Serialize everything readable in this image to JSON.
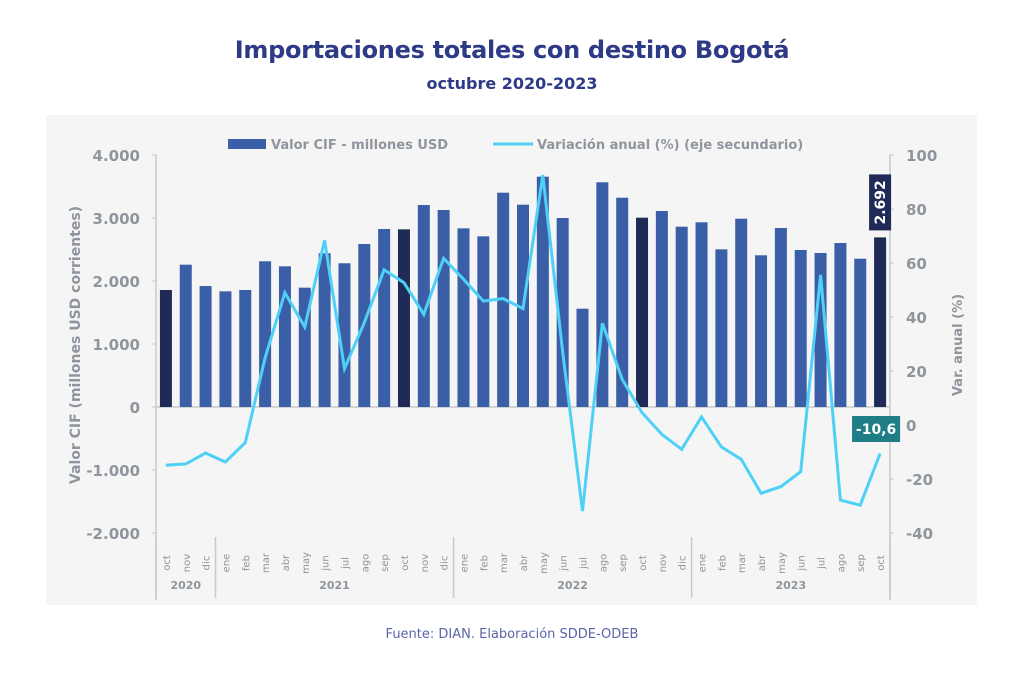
{
  "header": {
    "title": "Importaciones totales con destino Bogotá",
    "subtitle": "octubre 2020-2023"
  },
  "footer": {
    "source": "Fuente: DIAN. Elaboración SDDE-ODEB"
  },
  "colors": {
    "bar": "#3a5fa6",
    "bar_highlight": "#1f2a56",
    "line": "#4fd0f7",
    "axis_text": "#8e959c",
    "title": "#2e3a86",
    "label_bar_bg": "#1f2a56",
    "label_line_bg": "#1e7d85",
    "panel": "#f5f5f5"
  },
  "chart_data": {
    "type": "bar",
    "title": "Importaciones totales con destino Bogotá",
    "subtitle": "octubre 2020-2023",
    "ylabel": "Valor CIF (millones USD corrientes)",
    "y2label": "Var.  anual (%)",
    "ylim": [
      -2000,
      4000
    ],
    "y2lim": [
      -40,
      100
    ],
    "yticks": [
      "4.000",
      "3.000",
      "2.000",
      "1.000",
      "0",
      "-1.000",
      "-2.000"
    ],
    "ytick_values": [
      4000,
      3000,
      2000,
      1000,
      0,
      -1000,
      -2000
    ],
    "y2ticks": [
      "100",
      "80",
      "60",
      "40",
      "20",
      "0",
      "-20",
      "-40"
    ],
    "y2tick_values": [
      100,
      80,
      60,
      40,
      20,
      0,
      -20,
      -40
    ],
    "grid": false,
    "legend": {
      "position": "top",
      "entries": [
        "Valor CIF - millones USD",
        "Variación anual (%) (eje secundario)"
      ]
    },
    "categories": [
      "oct",
      "nov",
      "dic",
      "ene",
      "feb",
      "mar",
      "abr",
      "may",
      "jun",
      "jul",
      "ago",
      "sep",
      "oct",
      "nov",
      "dic",
      "ene",
      "feb",
      "mar",
      "abr",
      "may",
      "jun",
      "jul",
      "ago",
      "sep",
      "oct",
      "nov",
      "dic",
      "ene",
      "feb",
      "mar",
      "abr",
      "may",
      "jun",
      "jul",
      "ago",
      "sep",
      "oct"
    ],
    "year_groups": [
      {
        "label": "2020",
        "count": 3
      },
      {
        "label": "2021",
        "count": 12
      },
      {
        "label": "2022",
        "count": 12
      },
      {
        "label": "2023",
        "count": 10
      }
    ],
    "highlight_indices": [
      0,
      12,
      24,
      36
    ],
    "series": [
      {
        "name": "Valor CIF - millones USD",
        "type": "bar",
        "axis": "primary",
        "values": [
          1857,
          2259,
          1920,
          1836,
          1857,
          2313,
          2233,
          1894,
          2440,
          2281,
          2587,
          2825,
          2820,
          3206,
          3127,
          2836,
          2709,
          3402,
          3211,
          3656,
          3000,
          1560,
          3567,
          3322,
          3005,
          3111,
          2862,
          2932,
          2503,
          2989,
          2408,
          2841,
          2492,
          2444,
          2603,
          2354,
          2692
        ]
      },
      {
        "name": "Variación anual (%) (eje secundario)",
        "type": "line",
        "axis": "secondary",
        "values": [
          -14.9,
          -14.4,
          -10.4,
          -13.7,
          -6.5,
          24.9,
          49.0,
          36.3,
          68.4,
          20.9,
          37.9,
          57.5,
          52.7,
          41.0,
          61.7,
          54.0,
          45.9,
          46.8,
          43.1,
          92.6,
          27.0,
          -31.9,
          37.7,
          16.9,
          4.6,
          -3.5,
          -9.0,
          3.0,
          -8.1,
          -12.7,
          -25.3,
          -22.8,
          -17.3,
          55.6,
          -27.8,
          -29.7,
          -10.6
        ]
      }
    ],
    "annotations": [
      {
        "series": "Valor CIF - millones USD",
        "index": 36,
        "text": "2.692"
      },
      {
        "series": "Variación anual (%) (eje secundario)",
        "index": 36,
        "text": "-10,6"
      }
    ]
  }
}
